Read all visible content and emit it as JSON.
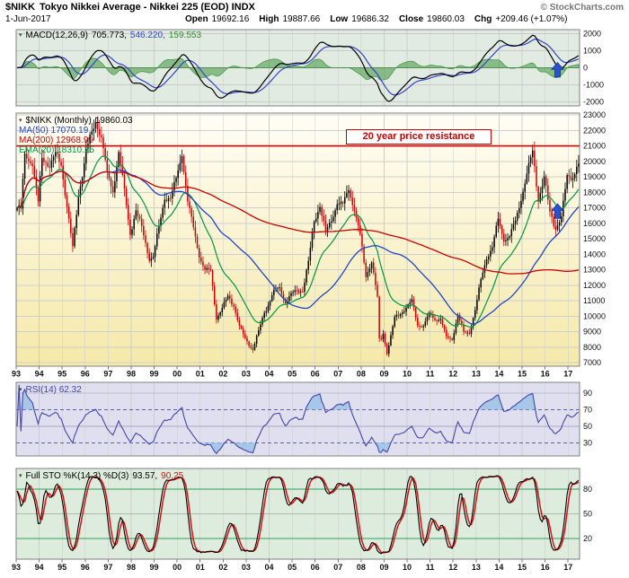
{
  "header": {
    "symbol": "$NIKK",
    "title": "Tokyo Nikkei Average - Nikkei 225 (EOD) INDX",
    "copyright": "© StockCharts.com",
    "date": "1-Jun-2017",
    "open_label": "Open",
    "open": "19692.16",
    "high_label": "High",
    "high": "19887.66",
    "low_label": "Low",
    "low": "19686.32",
    "close_label": "Close",
    "close": "19860.03",
    "chg_label": "Chg",
    "chg": "+209.46 (+1.07%)"
  },
  "panels": {
    "macd": {
      "legend_name": "MACD(12,26,9)",
      "value_macd": "705.773,",
      "value_signal": "546.220,",
      "value_hist": "159.553",
      "ticks": [
        2000,
        1000,
        0,
        -1000,
        -2000
      ]
    },
    "price": {
      "legend_symbol": "$NIKK (Monthly)",
      "legend_close": "19860.03",
      "ma50_label": "MA(50) 17070.19",
      "ma200_label": "MA(200) 12968.99",
      "ema20_label": "EMA(20) 18310.25",
      "ticks": [
        23000,
        22000,
        21000,
        20000,
        19000,
        18000,
        17000,
        16000,
        15000,
        14000,
        13000,
        12000,
        11000,
        10000,
        9000,
        8000,
        7000
      ]
    },
    "rsi": {
      "legend": "RSI(14) 62.32",
      "ticks": [
        90,
        70,
        50,
        30
      ]
    },
    "sto": {
      "legend_name": "Full STO %K(14,3) %D(3)",
      "value_k": "93.57,",
      "value_d": "90.25",
      "ticks": [
        80,
        50,
        20
      ]
    }
  },
  "x_axis": {
    "years": [
      "93",
      "94",
      "95",
      "96",
      "97",
      "98",
      "99",
      "00",
      "01",
      "02",
      "03",
      "04",
      "05",
      "06",
      "07",
      "08",
      "09",
      "10",
      "11",
      "12",
      "13",
      "14",
      "15",
      "16",
      "17"
    ]
  },
  "annotations": {
    "resistance_text": "20 year price resistance",
    "resistance_level": 21000,
    "arrow_month": 282,
    "arrow_price_tip": 17250,
    "arrow_macd_tip": 300
  },
  "chart_data": {
    "type": "candlestick",
    "title": "$NIKK Tokyo Nikkei Average - Nikkei 225 (EOD) INDX - Monthly",
    "x_unit": "months since Jan 1993",
    "x_range": [
      0,
      293
    ],
    "ylim": [
      7000,
      23000
    ],
    "grid": true,
    "last_candle": {
      "open": 19692.16,
      "high": 19887.66,
      "low": 19686.32,
      "close": 19860.03,
      "chg": 209.46,
      "chg_pct": 1.07
    },
    "overlays": [
      {
        "name": "MA(50)",
        "period": 50,
        "last": 17070.19
      },
      {
        "name": "MA(200)",
        "period": 200,
        "last": 12968.99
      },
      {
        "name": "EMA(20)",
        "period": 20,
        "last": 18310.25
      }
    ],
    "indicators": [
      {
        "name": "MACD",
        "params": [
          12,
          26,
          9
        ],
        "last": [
          705.773,
          546.22,
          159.553
        ],
        "ylim": [
          -2250,
          2250
        ]
      },
      {
        "name": "RSI",
        "params": [
          14
        ],
        "last": 62.32,
        "bands": [
          30,
          70
        ]
      },
      {
        "name": "Full STO",
        "params": "%K(14,3) %D(3)",
        "last": [
          93.57,
          90.25
        ],
        "bands": [
          20,
          80
        ]
      }
    ],
    "close_keypoints": [
      [
        0,
        17000
      ],
      [
        2,
        16950
      ],
      [
        4,
        20500
      ],
      [
        8,
        19700
      ],
      [
        11,
        17417
      ],
      [
        13,
        20229
      ],
      [
        17,
        19600
      ],
      [
        20,
        20600
      ],
      [
        23,
        19723
      ],
      [
        26,
        17053
      ],
      [
        29,
        14517
      ],
      [
        32,
        17700
      ],
      [
        35,
        19868
      ],
      [
        36,
        20813
      ],
      [
        41,
        22530
      ],
      [
        44,
        21556
      ],
      [
        47,
        19361
      ],
      [
        50,
        18003
      ],
      [
        53,
        20605
      ],
      [
        56,
        18229
      ],
      [
        59,
        15259
      ],
      [
        62,
        16831
      ],
      [
        65,
        15830
      ],
      [
        69,
        13565
      ],
      [
        71,
        13842
      ],
      [
        74,
        15837
      ],
      [
        77,
        17530
      ],
      [
        80,
        17605
      ],
      [
        83,
        18934
      ],
      [
        86,
        20337
      ],
      [
        89,
        17411
      ],
      [
        92,
        15747
      ],
      [
        95,
        13786
      ],
      [
        98,
        12999
      ],
      [
        101,
        12969
      ],
      [
        104,
        9775
      ],
      [
        107,
        10543
      ],
      [
        110,
        11333
      ],
      [
        113,
        10622
      ],
      [
        116,
        9383
      ],
      [
        119,
        8579
      ],
      [
        122,
        7973
      ],
      [
        123,
        7831
      ],
      [
        126,
        9083
      ],
      [
        129,
        10219
      ],
      [
        131,
        10677
      ],
      [
        134,
        11715
      ],
      [
        137,
        11859
      ],
      [
        140,
        10823
      ],
      [
        143,
        11489
      ],
      [
        146,
        11669
      ],
      [
        149,
        11584
      ],
      [
        152,
        13574
      ],
      [
        155,
        16111
      ],
      [
        158,
        17060
      ],
      [
        161,
        15505
      ],
      [
        164,
        16128
      ],
      [
        167,
        17226
      ],
      [
        170,
        17288
      ],
      [
        173,
        18138
      ],
      [
        176,
        16786
      ],
      [
        179,
        15308
      ],
      [
        182,
        12526
      ],
      [
        185,
        13481
      ],
      [
        188,
        11260
      ],
      [
        189,
        8577
      ],
      [
        190,
        8512
      ],
      [
        191,
        8860
      ],
      [
        193,
        7568
      ],
      [
        194,
        8110
      ],
      [
        197,
        9958
      ],
      [
        200,
        10133
      ],
      [
        203,
        10546
      ],
      [
        206,
        11090
      ],
      [
        209,
        9383
      ],
      [
        212,
        9369
      ],
      [
        215,
        10229
      ],
      [
        218,
        9755
      ],
      [
        221,
        9816
      ],
      [
        224,
        8700
      ],
      [
        227,
        8455
      ],
      [
        230,
        10084
      ],
      [
        233,
        9007
      ],
      [
        236,
        8870
      ],
      [
        239,
        10395
      ],
      [
        242,
        12398
      ],
      [
        245,
        13677
      ],
      [
        248,
        14456
      ],
      [
        251,
        16291
      ],
      [
        254,
        14828
      ],
      [
        257,
        15162
      ],
      [
        260,
        16174
      ],
      [
        263,
        17451
      ],
      [
        266,
        19207
      ],
      [
        269,
        20700
      ],
      [
        272,
        17388
      ],
      [
        275,
        19034
      ],
      [
        278,
        16759
      ],
      [
        281,
        15576
      ],
      [
        284,
        16450
      ],
      [
        287,
        19114
      ],
      [
        290,
        18909
      ],
      [
        292,
        19651
      ],
      [
        293,
        19860
      ]
    ]
  },
  "colors": {
    "up_candle": "#000000",
    "down_candle": "#cc0000",
    "ma50": "#2244cc",
    "ma200": "#cc0000",
    "ema20": "#009944",
    "macd_line": "#000000",
    "macd_signal": "#3344cc",
    "macd_hist": "#2e8b2e",
    "rsi_line": "#4444aa",
    "rsi_fill": "#9cc3e6",
    "sto_k": "#000000",
    "sto_d": "#dd1111",
    "annotation": "#cc0000",
    "arrow": "#2a52cc",
    "grid": "#cccccc",
    "macd_bg": "#e2ebe2",
    "rsi_bg": "#dfdff0",
    "sto_bg": "#ddecdd",
    "price_bg_top": "#fffef6",
    "price_bg_bottom": "#f5e9a9"
  }
}
